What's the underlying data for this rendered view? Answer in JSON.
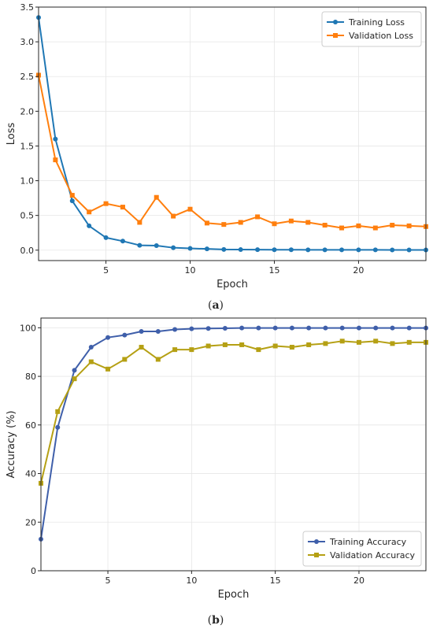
{
  "chart_data": [
    {
      "type": "line",
      "panel": "(a)",
      "caption_letter": "a",
      "xlabel": "Epoch",
      "ylabel": "Loss",
      "xlim": [
        1,
        24
      ],
      "ylim": [
        -0.15,
        3.5
      ],
      "xticks": [
        5,
        10,
        15,
        20
      ],
      "yticks": [
        0.0,
        0.5,
        1.0,
        1.5,
        2.0,
        2.5,
        3.0,
        3.5
      ],
      "ytick_decimals": 1,
      "grid": true,
      "legend_position": "top-right",
      "x": [
        1,
        2,
        3,
        4,
        5,
        6,
        7,
        8,
        9,
        10,
        11,
        12,
        13,
        14,
        15,
        16,
        17,
        18,
        19,
        20,
        21,
        22,
        23,
        24
      ],
      "series": [
        {
          "name": "Training Loss",
          "color": "#1f77b4",
          "marker": "circle",
          "values": [
            3.35,
            1.6,
            0.71,
            0.35,
            0.18,
            0.13,
            0.07,
            0.065,
            0.035,
            0.025,
            0.018,
            0.01,
            0.008,
            0.007,
            0.006,
            0.006,
            0.005,
            0.005,
            0.004,
            0.004,
            0.004,
            0.003,
            0.003,
            0.003
          ]
        },
        {
          "name": "Validation Loss",
          "color": "#ff7f0e",
          "marker": "square",
          "values": [
            2.52,
            1.3,
            0.79,
            0.55,
            0.67,
            0.62,
            0.4,
            0.76,
            0.49,
            0.59,
            0.39,
            0.37,
            0.4,
            0.48,
            0.38,
            0.42,
            0.4,
            0.36,
            0.32,
            0.35,
            0.32,
            0.36,
            0.35,
            0.34
          ]
        }
      ]
    },
    {
      "type": "line",
      "panel": "(b)",
      "caption_letter": "b",
      "xlabel": "Epoch",
      "ylabel": "Accuracy (%)",
      "xlim": [
        1,
        24
      ],
      "ylim": [
        0,
        104
      ],
      "xticks": [
        5,
        10,
        15,
        20
      ],
      "yticks": [
        0,
        20,
        40,
        60,
        80,
        100
      ],
      "ytick_decimals": 0,
      "grid": true,
      "legend_position": "bottom-right",
      "x": [
        1,
        2,
        3,
        4,
        5,
        6,
        7,
        8,
        9,
        10,
        11,
        12,
        13,
        14,
        15,
        16,
        17,
        18,
        19,
        20,
        21,
        22,
        23,
        24
      ],
      "series": [
        {
          "name": "Training Accuracy",
          "color": "#3f5faa",
          "marker": "circle",
          "values": [
            13,
            59,
            82.5,
            92,
            96,
            97,
            98.5,
            98.5,
            99.3,
            99.6,
            99.7,
            99.8,
            99.9,
            99.9,
            99.9,
            99.9,
            99.9,
            99.9,
            99.9,
            99.9,
            99.9,
            99.9,
            99.9,
            99.9
          ]
        },
        {
          "name": "Validation Accuracy",
          "color": "#b5a014",
          "marker": "square",
          "values": [
            36,
            65.5,
            79,
            86,
            83,
            87,
            92,
            87,
            91,
            91,
            92.5,
            93,
            93,
            91,
            92.5,
            92,
            93,
            93.5,
            94.5,
            94,
            94.5,
            93.5,
            94,
            94
          ]
        }
      ]
    }
  ]
}
